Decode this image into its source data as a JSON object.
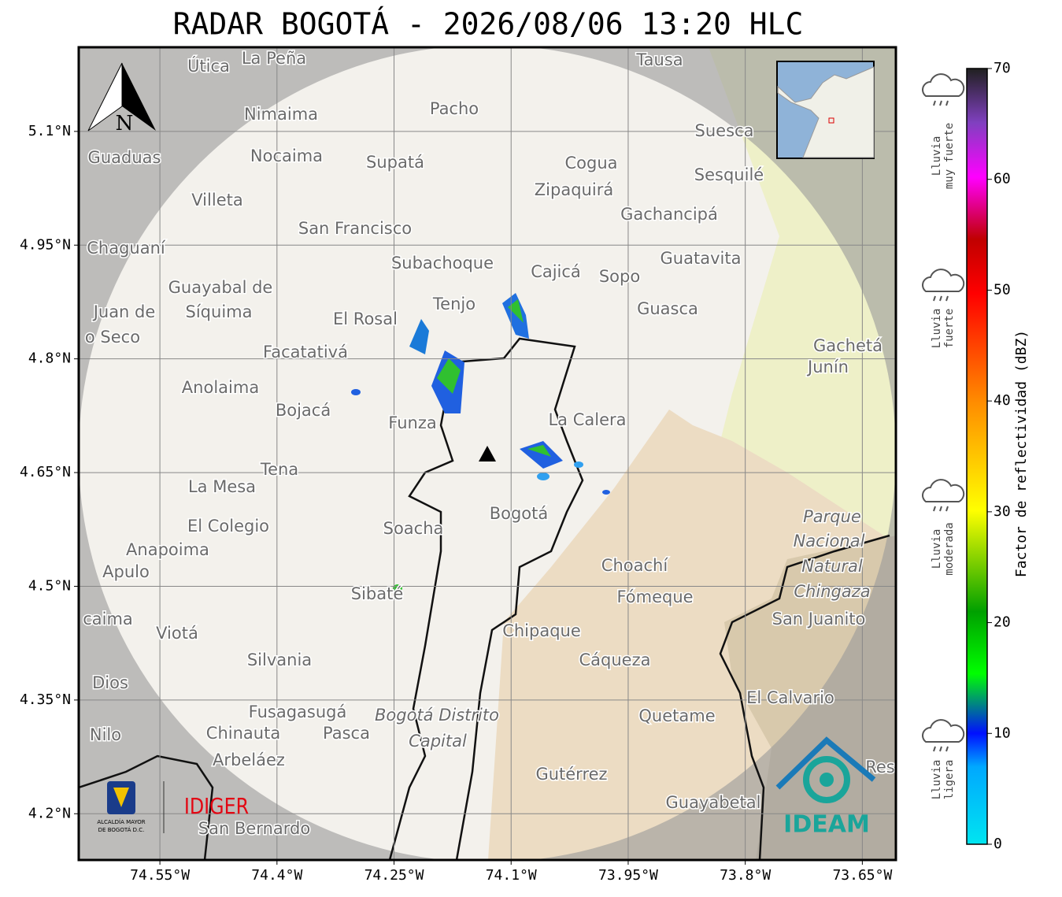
{
  "title": "RADAR BOGOTÁ - 2026/08/06 13:20 HLC",
  "map": {
    "xlim": [
      -74.654,
      -73.607
    ],
    "ylim": [
      4.139,
      5.211
    ],
    "xticks": [
      {
        "value": -74.55,
        "label": "74.55°W"
      },
      {
        "value": -74.4,
        "label": "74.4°W"
      },
      {
        "value": -74.25,
        "label": "74.25°W"
      },
      {
        "value": -74.1,
        "label": "74.1°W"
      },
      {
        "value": -73.95,
        "label": "73.95°W"
      },
      {
        "value": -73.8,
        "label": "73.8°W"
      },
      {
        "value": -73.65,
        "label": "73.65°W"
      }
    ],
    "yticks": [
      {
        "value": 5.1,
        "label": "5.1°N"
      },
      {
        "value": 4.95,
        "label": "4.95°N"
      },
      {
        "value": 4.8,
        "label": "4.8°N"
      },
      {
        "value": 4.65,
        "label": "4.65°N"
      },
      {
        "value": 4.5,
        "label": "4.5°N"
      },
      {
        "value": 4.35,
        "label": "4.35°N"
      },
      {
        "value": 4.2,
        "label": "4.2°N"
      }
    ],
    "north": "N",
    "places": [
      "La Peña",
      "Útica",
      "Tausa",
      "Pacho",
      "Nimaima",
      "Guaduas",
      "Nocaima",
      "Supatá",
      "Cogua",
      "Suesca",
      "Sesquilé",
      "Zipaquirá",
      "Villeta",
      "Gachancipá",
      "San Francisco",
      "Chaguaní",
      "Guatavita",
      "Subachoque",
      "Cajicá",
      "Sopo",
      "Guayabal de",
      "Síquima",
      "Juan de",
      "o Seco",
      "Tenjo",
      "Guasca",
      "El Rosal",
      "Facatativá",
      "Gachetá",
      "Junín",
      "Anolaima",
      "Bojacá",
      "Funza",
      "La Calera",
      "Tena",
      "La Mesa",
      "Bogotá",
      "Soacha",
      "El Colegio",
      "Anapoima",
      "Apulo",
      "Parque",
      "Nacional",
      "Natural",
      "Chingaza",
      "Choachí",
      "Fómeque",
      "San Juanito",
      "Sibaté",
      "caima",
      "Viotá",
      "Chipaque",
      "Silvania",
      "Cáqueza",
      "Dios",
      "El Calvario",
      "Fusagasugá",
      "Bogotá Distrito",
      "Capital",
      "Quetame",
      "Nilo",
      "Chinauta",
      "Pasca",
      "Arbeláez",
      "Gutérrez",
      "Guayabetal",
      "San Bernardo",
      "Res"
    ]
  },
  "colorbar": {
    "label": "Factor de reflectividad (dBZ)",
    "lim": [
      0,
      70
    ],
    "ticks": [
      0,
      10,
      20,
      30,
      40,
      50,
      60,
      70
    ],
    "intensity": [
      [
        "Lluvia",
        "muy fuerte"
      ],
      [
        "Lluvia",
        "fuerte"
      ],
      [
        "Lluvia",
        "moderada"
      ],
      [
        "Lluvia",
        "ligera"
      ]
    ]
  },
  "logos": {
    "alcaldia": [
      "ALCALDÍA MAYOR",
      "DE BOGOTÁ D.C."
    ],
    "idiger": "IDIGER",
    "ideam": "IDEAM"
  }
}
